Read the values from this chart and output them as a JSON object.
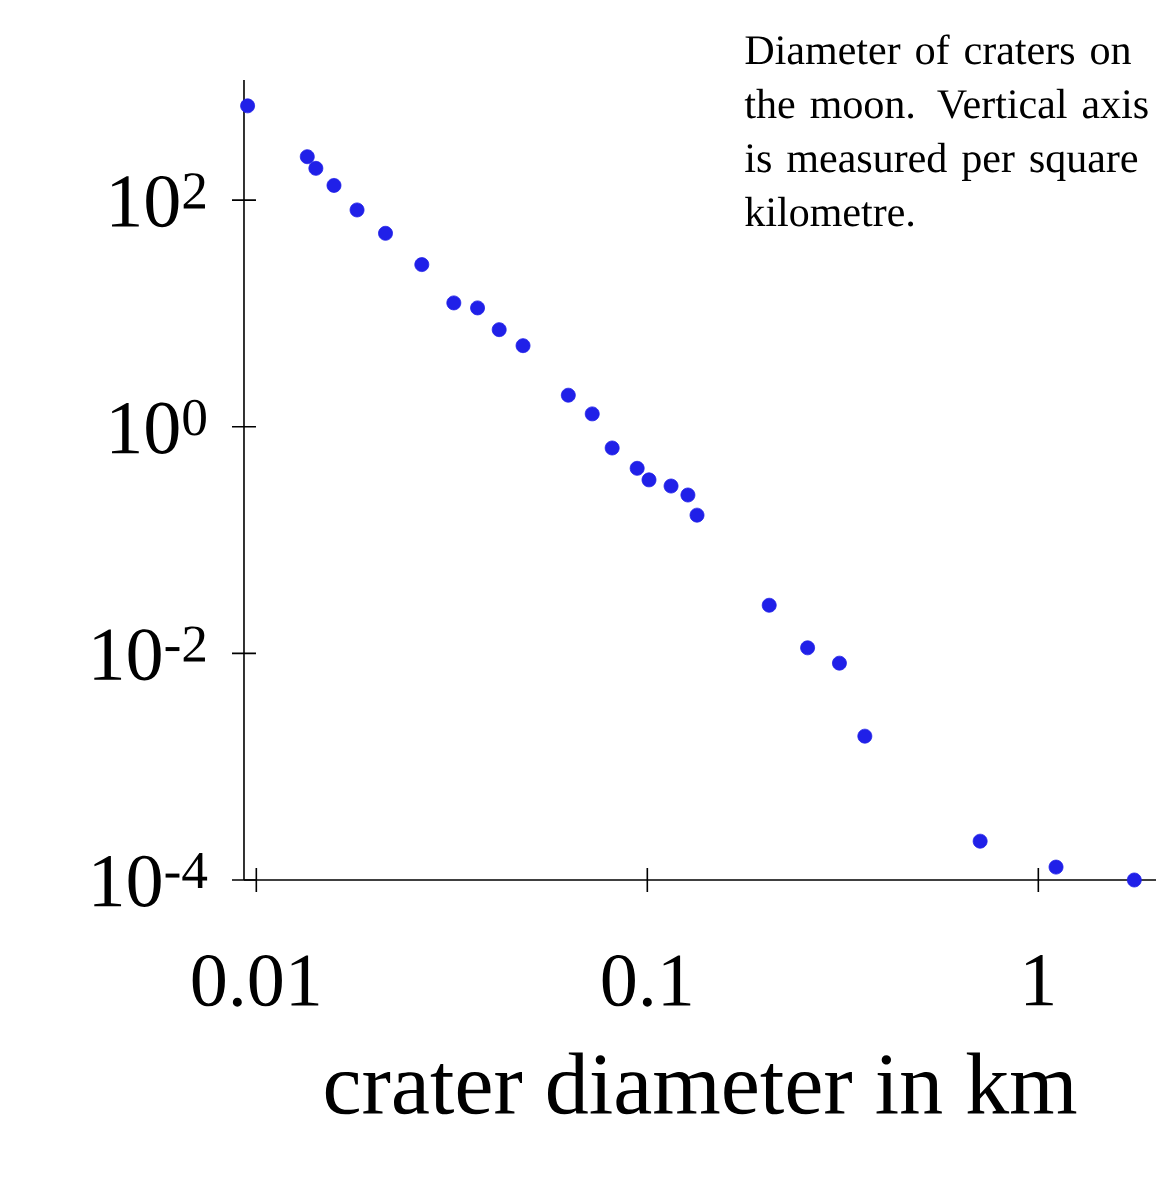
{
  "chart_data": {
    "type": "scatter",
    "xlabel": "crater diameter in km",
    "annotations": [
      "Diameter of craters on the moon. Vertical axis is measured per square kilometre."
    ],
    "log": "xy",
    "x": [
      0.0095,
      0.0135,
      0.0142,
      0.0158,
      0.0181,
      0.0214,
      0.0265,
      0.032,
      0.0368,
      0.0418,
      0.0481,
      0.0628,
      0.0723,
      0.0813,
      0.0942,
      0.101,
      0.115,
      0.127,
      0.134,
      0.205,
      0.257,
      0.31,
      0.36,
      0.71,
      1.11,
      1.76
    ],
    "series": [
      {
        "color": "#2020e8",
        "values": [
          680,
          242,
          191,
          135,
          82,
          51,
          27,
          12.4,
          11.2,
          7.2,
          5.2,
          1.9,
          1.3,
          0.65,
          0.43,
          0.34,
          0.3,
          0.25,
          0.166,
          0.0266,
          0.0112,
          0.0082,
          0.00186,
          0.00022,
          0.00013,
          0.0001
        ]
      }
    ],
    "xlim": [
      0.0093,
      2
    ],
    "ylim": [
      0.0001,
      1150
    ],
    "xticks": [
      0.01,
      0.1,
      1
    ],
    "yticks": [
      {
        "value": 0.0001,
        "label": "10$^{-4}$"
      },
      {
        "value": 0.01,
        "label": "10$^{-2}$"
      },
      {
        "value": 1,
        "label": "10$^{0}$"
      },
      {
        "value": 100,
        "label": "10$^{2}$"
      }
    ],
    "grid": false,
    "legend": false
  }
}
